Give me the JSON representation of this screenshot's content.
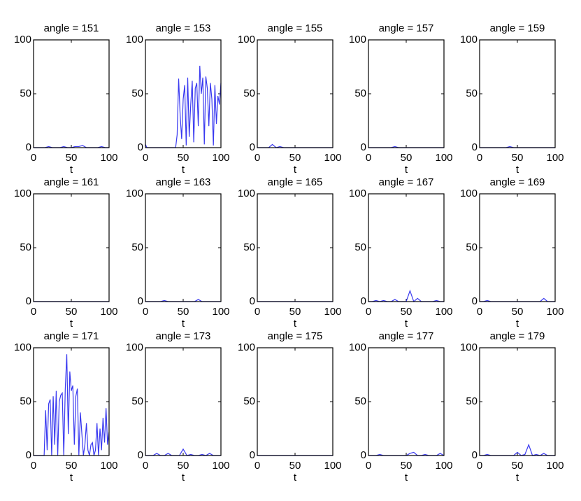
{
  "chart_data": [
    {
      "type": "line",
      "title": "angle = 151",
      "x_label": "t",
      "xlim": [
        0,
        100
      ],
      "ylim": [
        0,
        100
      ],
      "xticks": [
        0,
        50,
        100
      ],
      "yticks": [
        0,
        50,
        100
      ],
      "x": [
        0,
        5,
        10,
        15,
        20,
        25,
        30,
        35,
        40,
        45,
        50,
        55,
        60,
        65,
        70,
        75,
        80,
        85,
        90,
        95,
        100
      ],
      "series": [
        {
          "color": "#3a3af0",
          "values": [
            0,
            0,
            0,
            0,
            1,
            0,
            0,
            0,
            1,
            0,
            0,
            1,
            1,
            2,
            0,
            0,
            0,
            0,
            1,
            0,
            0
          ]
        }
      ]
    },
    {
      "type": "line",
      "title": "angle = 153",
      "x_label": "t",
      "xlim": [
        0,
        100
      ],
      "ylim": [
        0,
        100
      ],
      "xticks": [
        0,
        50,
        100
      ],
      "yticks": [
        0,
        50,
        100
      ],
      "x": [
        0,
        2,
        4,
        6,
        8,
        10,
        12,
        14,
        16,
        18,
        20,
        22,
        24,
        26,
        28,
        30,
        32,
        34,
        36,
        38,
        40,
        42,
        44,
        46,
        48,
        50,
        52,
        54,
        56,
        58,
        60,
        62,
        64,
        66,
        68,
        70,
        72,
        74,
        76,
        78,
        80,
        82,
        84,
        86,
        88,
        90,
        92,
        94,
        96,
        98,
        100
      ],
      "series": [
        {
          "color": "#3a3af0",
          "values": [
            3,
            0,
            0,
            0,
            0,
            0,
            0,
            0,
            0,
            0,
            0,
            0,
            0,
            0,
            0,
            0,
            0,
            0,
            0,
            0,
            0,
            12,
            64,
            30,
            8,
            45,
            58,
            2,
            65,
            10,
            40,
            62,
            5,
            55,
            60,
            20,
            76,
            50,
            65,
            3,
            66,
            55,
            20,
            60,
            45,
            2,
            58,
            22,
            48,
            40,
            60
          ]
        }
      ]
    },
    {
      "type": "line",
      "title": "angle = 155",
      "x_label": "t",
      "xlim": [
        0,
        100
      ],
      "ylim": [
        0,
        100
      ],
      "xticks": [
        0,
        50,
        100
      ],
      "yticks": [
        0,
        50,
        100
      ],
      "x": [
        0,
        5,
        10,
        15,
        20,
        25,
        30,
        35,
        40,
        45,
        50,
        55,
        60,
        65,
        70,
        75,
        80,
        85,
        90,
        95,
        100
      ],
      "series": [
        {
          "color": "#3a3af0",
          "values": [
            0,
            0,
            0,
            0,
            3,
            0,
            1,
            0,
            0,
            0,
            0,
            0,
            0,
            0,
            0,
            0,
            0,
            0,
            0,
            0,
            0
          ]
        }
      ]
    },
    {
      "type": "line",
      "title": "angle = 157",
      "x_label": "t",
      "xlim": [
        0,
        100
      ],
      "ylim": [
        0,
        100
      ],
      "xticks": [
        0,
        50,
        100
      ],
      "yticks": [
        0,
        50,
        100
      ],
      "x": [
        0,
        5,
        10,
        15,
        20,
        25,
        30,
        35,
        40,
        45,
        50,
        55,
        60,
        65,
        70,
        75,
        80,
        85,
        90,
        95,
        100
      ],
      "series": [
        {
          "color": "#3a3af0",
          "values": [
            0,
            0,
            0,
            0,
            0,
            0,
            0,
            1,
            0,
            0,
            0,
            0,
            0,
            0,
            0,
            0,
            0,
            0,
            0,
            0,
            0
          ]
        }
      ]
    },
    {
      "type": "line",
      "title": "angle = 159",
      "x_label": "t",
      "xlim": [
        0,
        100
      ],
      "ylim": [
        0,
        100
      ],
      "xticks": [
        0,
        50,
        100
      ],
      "yticks": [
        0,
        50,
        100
      ],
      "x": [
        0,
        5,
        10,
        15,
        20,
        25,
        30,
        35,
        40,
        45,
        50,
        55,
        60,
        65,
        70,
        75,
        80,
        85,
        90,
        95,
        100
      ],
      "series": [
        {
          "color": "#3a3af0",
          "values": [
            0,
            0,
            0,
            0,
            0,
            0,
            0,
            0,
            1,
            0,
            0,
            0,
            0,
            0,
            0,
            0,
            0,
            0,
            0,
            0,
            0
          ]
        }
      ]
    },
    {
      "type": "line",
      "title": "angle = 161",
      "x_label": "t",
      "xlim": [
        0,
        100
      ],
      "ylim": [
        0,
        100
      ],
      "xticks": [
        0,
        50,
        100
      ],
      "yticks": [
        0,
        50,
        100
      ],
      "x": [
        0,
        5,
        10,
        15,
        20,
        25,
        30,
        35,
        40,
        45,
        50,
        55,
        60,
        65,
        70,
        75,
        80,
        85,
        90,
        95,
        100
      ],
      "series": [
        {
          "color": "#3a3af0",
          "values": [
            0,
            0,
            0,
            0,
            0,
            0,
            0,
            0,
            0,
            0,
            0,
            0,
            0,
            0,
            0,
            0,
            0,
            0,
            0,
            0,
            0
          ]
        }
      ]
    },
    {
      "type": "line",
      "title": "angle = 163",
      "x_label": "t",
      "xlim": [
        0,
        100
      ],
      "ylim": [
        0,
        100
      ],
      "xticks": [
        0,
        50,
        100
      ],
      "yticks": [
        0,
        50,
        100
      ],
      "x": [
        0,
        5,
        10,
        15,
        20,
        25,
        30,
        35,
        40,
        45,
        50,
        55,
        60,
        65,
        70,
        75,
        80,
        85,
        90,
        95,
        100
      ],
      "series": [
        {
          "color": "#3a3af0",
          "values": [
            0,
            0,
            0,
            0,
            0,
            1,
            0,
            0,
            0,
            0,
            0,
            0,
            0,
            0,
            2,
            0,
            0,
            0,
            0,
            0,
            0
          ]
        }
      ]
    },
    {
      "type": "line",
      "title": "angle = 165",
      "x_label": "t",
      "xlim": [
        0,
        100
      ],
      "ylim": [
        0,
        100
      ],
      "xticks": [
        0,
        50,
        100
      ],
      "yticks": [
        0,
        50,
        100
      ],
      "x": [
        0,
        5,
        10,
        15,
        20,
        25,
        30,
        35,
        40,
        45,
        50,
        55,
        60,
        65,
        70,
        75,
        80,
        85,
        90,
        95,
        100
      ],
      "series": [
        {
          "color": "#3a3af0",
          "values": [
            0,
            0,
            0,
            0,
            0,
            0,
            0,
            0,
            0,
            0,
            0,
            0,
            0,
            0,
            0,
            0,
            0,
            0,
            0,
            0,
            0
          ]
        }
      ]
    },
    {
      "type": "line",
      "title": "angle = 167",
      "x_label": "t",
      "xlim": [
        0,
        100
      ],
      "ylim": [
        0,
        100
      ],
      "xticks": [
        0,
        50,
        100
      ],
      "yticks": [
        0,
        50,
        100
      ],
      "x": [
        0,
        5,
        10,
        15,
        20,
        25,
        30,
        35,
        40,
        45,
        50,
        55,
        60,
        65,
        70,
        75,
        80,
        85,
        90,
        95,
        100
      ],
      "series": [
        {
          "color": "#3a3af0",
          "values": [
            0,
            0,
            1,
            0,
            1,
            0,
            0,
            2,
            0,
            0,
            0,
            10,
            0,
            3,
            0,
            0,
            0,
            0,
            1,
            0,
            0
          ]
        }
      ]
    },
    {
      "type": "line",
      "title": "angle = 169",
      "x_label": "t",
      "xlim": [
        0,
        100
      ],
      "ylim": [
        0,
        100
      ],
      "xticks": [
        0,
        50,
        100
      ],
      "yticks": [
        0,
        50,
        100
      ],
      "x": [
        0,
        5,
        10,
        15,
        20,
        25,
        30,
        35,
        40,
        45,
        50,
        55,
        60,
        65,
        70,
        75,
        80,
        85,
        90,
        95,
        100
      ],
      "series": [
        {
          "color": "#3a3af0",
          "values": [
            0,
            0,
            1,
            0,
            0,
            0,
            0,
            0,
            0,
            0,
            0,
            0,
            0,
            0,
            0,
            0,
            0,
            3,
            0,
            0,
            0
          ]
        }
      ]
    },
    {
      "type": "line",
      "title": "angle = 171",
      "x_label": "t",
      "xlim": [
        0,
        100
      ],
      "ylim": [
        0,
        100
      ],
      "xticks": [
        0,
        50,
        100
      ],
      "yticks": [
        0,
        50,
        100
      ],
      "x": [
        0,
        2,
        4,
        6,
        8,
        10,
        12,
        14,
        16,
        18,
        20,
        22,
        24,
        26,
        28,
        30,
        32,
        34,
        36,
        38,
        40,
        42,
        44,
        46,
        48,
        50,
        52,
        54,
        56,
        58,
        60,
        62,
        64,
        66,
        68,
        70,
        72,
        74,
        76,
        78,
        80,
        82,
        84,
        86,
        88,
        90,
        92,
        94,
        96,
        98,
        100
      ],
      "series": [
        {
          "color": "#3a3af0",
          "values": [
            0,
            0,
            0,
            0,
            0,
            0,
            0,
            0,
            42,
            5,
            48,
            52,
            0,
            55,
            10,
            60,
            0,
            50,
            56,
            58,
            0,
            62,
            94,
            20,
            78,
            60,
            65,
            10,
            55,
            62,
            0,
            40,
            20,
            0,
            10,
            30,
            5,
            0,
            10,
            12,
            0,
            5,
            30,
            0,
            25,
            5,
            35,
            12,
            44,
            10,
            22
          ]
        }
      ]
    },
    {
      "type": "line",
      "title": "angle = 173",
      "x_label": "t",
      "xlim": [
        0,
        100
      ],
      "ylim": [
        0,
        100
      ],
      "xticks": [
        0,
        50,
        100
      ],
      "yticks": [
        0,
        50,
        100
      ],
      "x": [
        0,
        5,
        10,
        15,
        20,
        25,
        30,
        35,
        40,
        45,
        50,
        55,
        60,
        65,
        70,
        75,
        80,
        85,
        90,
        95,
        100
      ],
      "series": [
        {
          "color": "#3a3af0",
          "values": [
            0,
            0,
            0,
            2,
            0,
            0,
            2,
            0,
            0,
            0,
            6,
            0,
            1,
            0,
            0,
            1,
            0,
            2,
            0,
            0,
            0
          ]
        }
      ]
    },
    {
      "type": "line",
      "title": "angle = 175",
      "x_label": "t",
      "xlim": [
        0,
        100
      ],
      "ylim": [
        0,
        100
      ],
      "xticks": [
        0,
        50,
        100
      ],
      "yticks": [
        0,
        50,
        100
      ],
      "x": [
        0,
        5,
        10,
        15,
        20,
        25,
        30,
        35,
        40,
        45,
        50,
        55,
        60,
        65,
        70,
        75,
        80,
        85,
        90,
        95,
        100
      ],
      "series": [
        {
          "color": "#3a3af0",
          "values": [
            0,
            0,
            0,
            0,
            0,
            0,
            0,
            0,
            0,
            0,
            0,
            0,
            0,
            0,
            0,
            0,
            0,
            0,
            0,
            0,
            0
          ]
        }
      ]
    },
    {
      "type": "line",
      "title": "angle = 177",
      "x_label": "t",
      "xlim": [
        0,
        100
      ],
      "ylim": [
        0,
        100
      ],
      "xticks": [
        0,
        50,
        100
      ],
      "yticks": [
        0,
        50,
        100
      ],
      "x": [
        0,
        5,
        10,
        15,
        20,
        25,
        30,
        35,
        40,
        45,
        50,
        55,
        60,
        65,
        70,
        75,
        80,
        85,
        90,
        95,
        100
      ],
      "series": [
        {
          "color": "#3a3af0",
          "values": [
            0,
            0,
            0,
            1,
            0,
            0,
            0,
            0,
            0,
            0,
            0,
            2,
            3,
            0,
            0,
            1,
            0,
            0,
            0,
            2,
            0
          ]
        }
      ]
    },
    {
      "type": "line",
      "title": "angle = 179",
      "x_label": "t",
      "xlim": [
        0,
        100
      ],
      "ylim": [
        0,
        100
      ],
      "xticks": [
        0,
        50,
        100
      ],
      "yticks": [
        0,
        50,
        100
      ],
      "x": [
        0,
        5,
        10,
        15,
        20,
        25,
        30,
        35,
        40,
        45,
        50,
        55,
        60,
        65,
        70,
        75,
        80,
        85,
        90,
        95,
        100
      ],
      "series": [
        {
          "color": "#3a3af0",
          "values": [
            0,
            0,
            1,
            0,
            0,
            0,
            0,
            0,
            0,
            0,
            3,
            0,
            1,
            10,
            0,
            1,
            0,
            2,
            0,
            0,
            0
          ]
        }
      ]
    }
  ]
}
